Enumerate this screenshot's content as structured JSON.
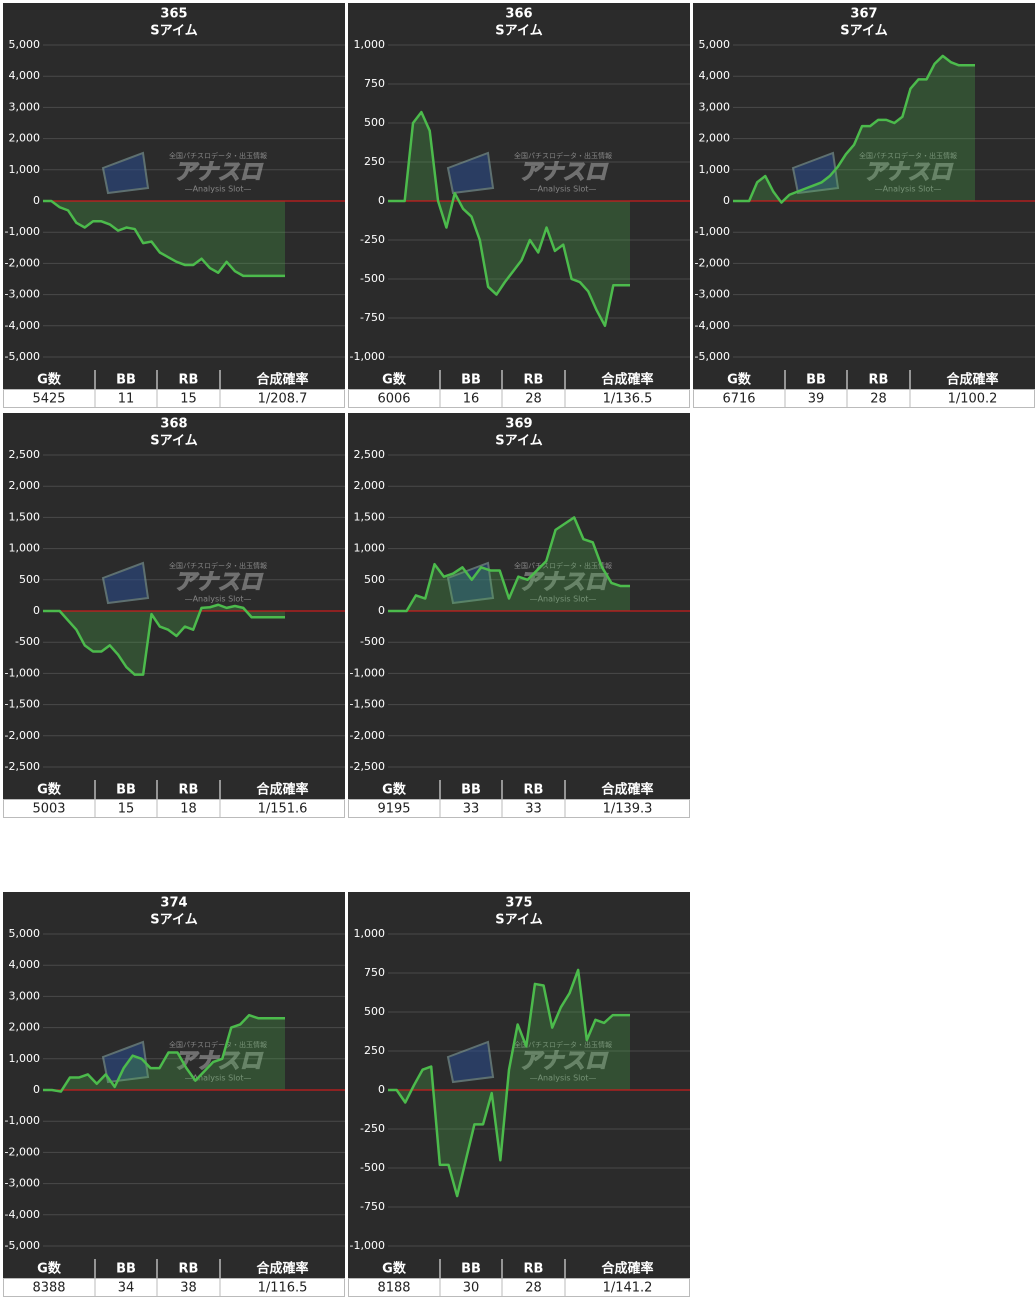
{
  "watermark": {
    "tagline": "全国パチスロデータ・出玉情報",
    "title": "アナスロ",
    "caption": "—Analysis Slot—"
  },
  "chart_data": [
    {
      "type": "line",
      "title": "365",
      "subtitle": "Sアイム",
      "color": "#4cbb4c",
      "area": true,
      "zero_line_color": "#c81e1e",
      "grid": true,
      "values": [
        0,
        0,
        -200,
        -300,
        -700,
        -850,
        -650,
        -650,
        -750,
        -950,
        -850,
        -900,
        -1350,
        -1300,
        -1650,
        -1800,
        -1950,
        -2050,
        -2050,
        -1850,
        -2150,
        -2300,
        -1950,
        -2250,
        -2400,
        -2400,
        -2400,
        -2400,
        -2400,
        -2400
      ],
      "ylim": [
        -5000,
        5000
      ],
      "yticks": [
        {
          "value": 5000,
          "label": "5,000"
        },
        {
          "value": 4000,
          "label": "4,000"
        },
        {
          "value": 3000,
          "label": "3,000"
        },
        {
          "value": 2000,
          "label": "2,000"
        },
        {
          "value": 1000,
          "label": "1,000"
        },
        0,
        {
          "value": -1000,
          "label": "-1,000"
        },
        {
          "value": -2000,
          "label": "-2,000"
        },
        {
          "value": -3000,
          "label": "-3,000"
        },
        {
          "value": -4000,
          "label": "-4,000"
        },
        {
          "value": -5000,
          "label": "-5,000"
        }
      ],
      "stats": {
        "headers": [
          "G数",
          "BB",
          "RB",
          "合成確率"
        ],
        "values": [
          5425,
          11,
          15,
          "1/208.7"
        ]
      }
    },
    {
      "type": "line",
      "title": "366",
      "subtitle": "Sアイム",
      "color": "#4cbb4c",
      "area": true,
      "zero_line_color": "#c81e1e",
      "grid": true,
      "values": [
        0,
        0,
        0,
        500,
        570,
        450,
        0,
        -170,
        50,
        -50,
        -100,
        -250,
        -550,
        -600,
        -520,
        -450,
        -380,
        -250,
        -330,
        -170,
        -320,
        -280,
        -500,
        -520,
        -580,
        -700,
        -800,
        -540,
        -540,
        -540
      ],
      "ylim": [
        -1000,
        1000
      ],
      "yticks": [
        {
          "value": 1000,
          "label": "1,000"
        },
        750,
        500,
        250,
        0,
        -250,
        -500,
        -750,
        {
          "value": -1000,
          "label": "-1,000"
        }
      ],
      "stats": {
        "headers": [
          "G数",
          "BB",
          "RB",
          "合成確率"
        ],
        "values": [
          6006,
          16,
          28,
          "1/136.5"
        ]
      }
    },
    {
      "type": "line",
      "title": "367",
      "subtitle": "Sアイム",
      "color": "#4cbb4c",
      "area": true,
      "zero_line_color": "#c81e1e",
      "grid": true,
      "values": [
        0,
        0,
        0,
        600,
        800,
        300,
        -50,
        200,
        300,
        400,
        500,
        600,
        800,
        1100,
        1500,
        1800,
        2400,
        2400,
        2600,
        2600,
        2500,
        2700,
        3600,
        3900,
        3900,
        4400,
        4650,
        4450,
        4350,
        4350,
        4350
      ],
      "ylim": [
        -5000,
        5000
      ],
      "yticks": [
        {
          "value": 5000,
          "label": "5,000"
        },
        {
          "value": 4000,
          "label": "4,000"
        },
        {
          "value": 3000,
          "label": "3,000"
        },
        {
          "value": 2000,
          "label": "2,000"
        },
        {
          "value": 1000,
          "label": "1,000"
        },
        0,
        {
          "value": -1000,
          "label": "-1,000"
        },
        {
          "value": -2000,
          "label": "-2,000"
        },
        {
          "value": -3000,
          "label": "-3,000"
        },
        {
          "value": -4000,
          "label": "-4,000"
        },
        {
          "value": -5000,
          "label": "-5,000"
        }
      ],
      "stats": {
        "headers": [
          "G数",
          "BB",
          "RB",
          "合成確率"
        ],
        "values": [
          6716,
          39,
          28,
          "1/100.2"
        ]
      }
    },
    {
      "type": "line",
      "title": "368",
      "subtitle": "Sアイム",
      "color": "#4cbb4c",
      "area": true,
      "zero_line_color": "#c81e1e",
      "grid": true,
      "values": [
        0,
        0,
        0,
        -150,
        -300,
        -550,
        -650,
        -650,
        -550,
        -700,
        -900,
        -1020,
        -1020,
        -50,
        -250,
        -300,
        -400,
        -250,
        -300,
        50,
        60,
        100,
        50,
        80,
        50,
        -100,
        -100,
        -100,
        -100,
        -100
      ],
      "ylim": [
        -2500,
        2500
      ],
      "yticks": [
        {
          "value": 2500,
          "label": "2,500"
        },
        {
          "value": 2000,
          "label": "2,000"
        },
        {
          "value": 1500,
          "label": "1,500"
        },
        {
          "value": 1000,
          "label": "1,000"
        },
        500,
        0,
        -500,
        {
          "value": -1000,
          "label": "-1,000"
        },
        {
          "value": -1500,
          "label": "-1,500"
        },
        {
          "value": -2000,
          "label": "-2,000"
        },
        {
          "value": -2500,
          "label": "-2,500"
        }
      ],
      "stats": {
        "headers": [
          "G数",
          "BB",
          "RB",
          "合成確率"
        ],
        "values": [
          5003,
          15,
          18,
          "1/151.6"
        ]
      }
    },
    {
      "type": "line",
      "title": "369",
      "subtitle": "Sアイム",
      "color": "#4cbb4c",
      "area": true,
      "zero_line_color": "#c81e1e",
      "grid": true,
      "values": [
        0,
        0,
        0,
        250,
        200,
        750,
        550,
        600,
        700,
        500,
        700,
        650,
        650,
        200,
        550,
        500,
        650,
        800,
        1300,
        1400,
        1500,
        1150,
        1100,
        700,
        450,
        400,
        400
      ],
      "ylim": [
        -2500,
        2500
      ],
      "yticks": [
        {
          "value": 2500,
          "label": "2,500"
        },
        {
          "value": 2000,
          "label": "2,000"
        },
        {
          "value": 1500,
          "label": "1,500"
        },
        {
          "value": 1000,
          "label": "1,000"
        },
        500,
        0,
        -500,
        {
          "value": -1000,
          "label": "-1,000"
        },
        {
          "value": -1500,
          "label": "-1,500"
        },
        {
          "value": -2000,
          "label": "-2,000"
        },
        {
          "value": -2500,
          "label": "-2,500"
        }
      ],
      "stats": {
        "headers": [
          "G数",
          "BB",
          "RB",
          "合成確率"
        ],
        "values": [
          9195,
          33,
          33,
          "1/139.3"
        ]
      }
    },
    {
      "type": "line",
      "title": "374",
      "subtitle": "Sアイム",
      "color": "#4cbb4c",
      "area": true,
      "zero_line_color": "#c81e1e",
      "grid": true,
      "values": [
        0,
        0,
        -50,
        400,
        400,
        500,
        200,
        500,
        100,
        700,
        1100,
        1000,
        700,
        700,
        1200,
        1200,
        700,
        300,
        600,
        900,
        1000,
        2000,
        2100,
        2400,
        2300,
        2300,
        2300,
        2300
      ],
      "ylim": [
        -5000,
        5000
      ],
      "yticks": [
        {
          "value": 5000,
          "label": "5,000"
        },
        {
          "value": 4000,
          "label": "4,000"
        },
        {
          "value": 3000,
          "label": "3,000"
        },
        {
          "value": 2000,
          "label": "2,000"
        },
        {
          "value": 1000,
          "label": "1,000"
        },
        0,
        {
          "value": -1000,
          "label": "-1,000"
        },
        {
          "value": -2000,
          "label": "-2,000"
        },
        {
          "value": -3000,
          "label": "-3,000"
        },
        {
          "value": -4000,
          "label": "-4,000"
        },
        {
          "value": -5000,
          "label": "-5,000"
        }
      ],
      "stats": {
        "headers": [
          "G数",
          "BB",
          "RB",
          "合成確率"
        ],
        "values": [
          8388,
          34,
          38,
          "1/116.5"
        ]
      }
    },
    {
      "type": "line",
      "title": "375",
      "subtitle": "Sアイム",
      "color": "#4cbb4c",
      "area": true,
      "zero_line_color": "#c81e1e",
      "grid": true,
      "values": [
        0,
        0,
        -80,
        30,
        130,
        150,
        -480,
        -480,
        -680,
        -450,
        -220,
        -220,
        -20,
        -450,
        130,
        420,
        280,
        680,
        670,
        400,
        530,
        620,
        770,
        320,
        450,
        430,
        480,
        480,
        480
      ],
      "ylim": [
        -1000,
        1000
      ],
      "yticks": [
        {
          "value": 1000,
          "label": "1,000"
        },
        750,
        500,
        250,
        0,
        -250,
        -500,
        -750,
        {
          "value": -1000,
          "label": "-1,000"
        }
      ],
      "stats": {
        "headers": [
          "G数",
          "BB",
          "RB",
          "合成確率"
        ],
        "values": [
          8188,
          30,
          28,
          "1/141.2"
        ]
      }
    }
  ]
}
